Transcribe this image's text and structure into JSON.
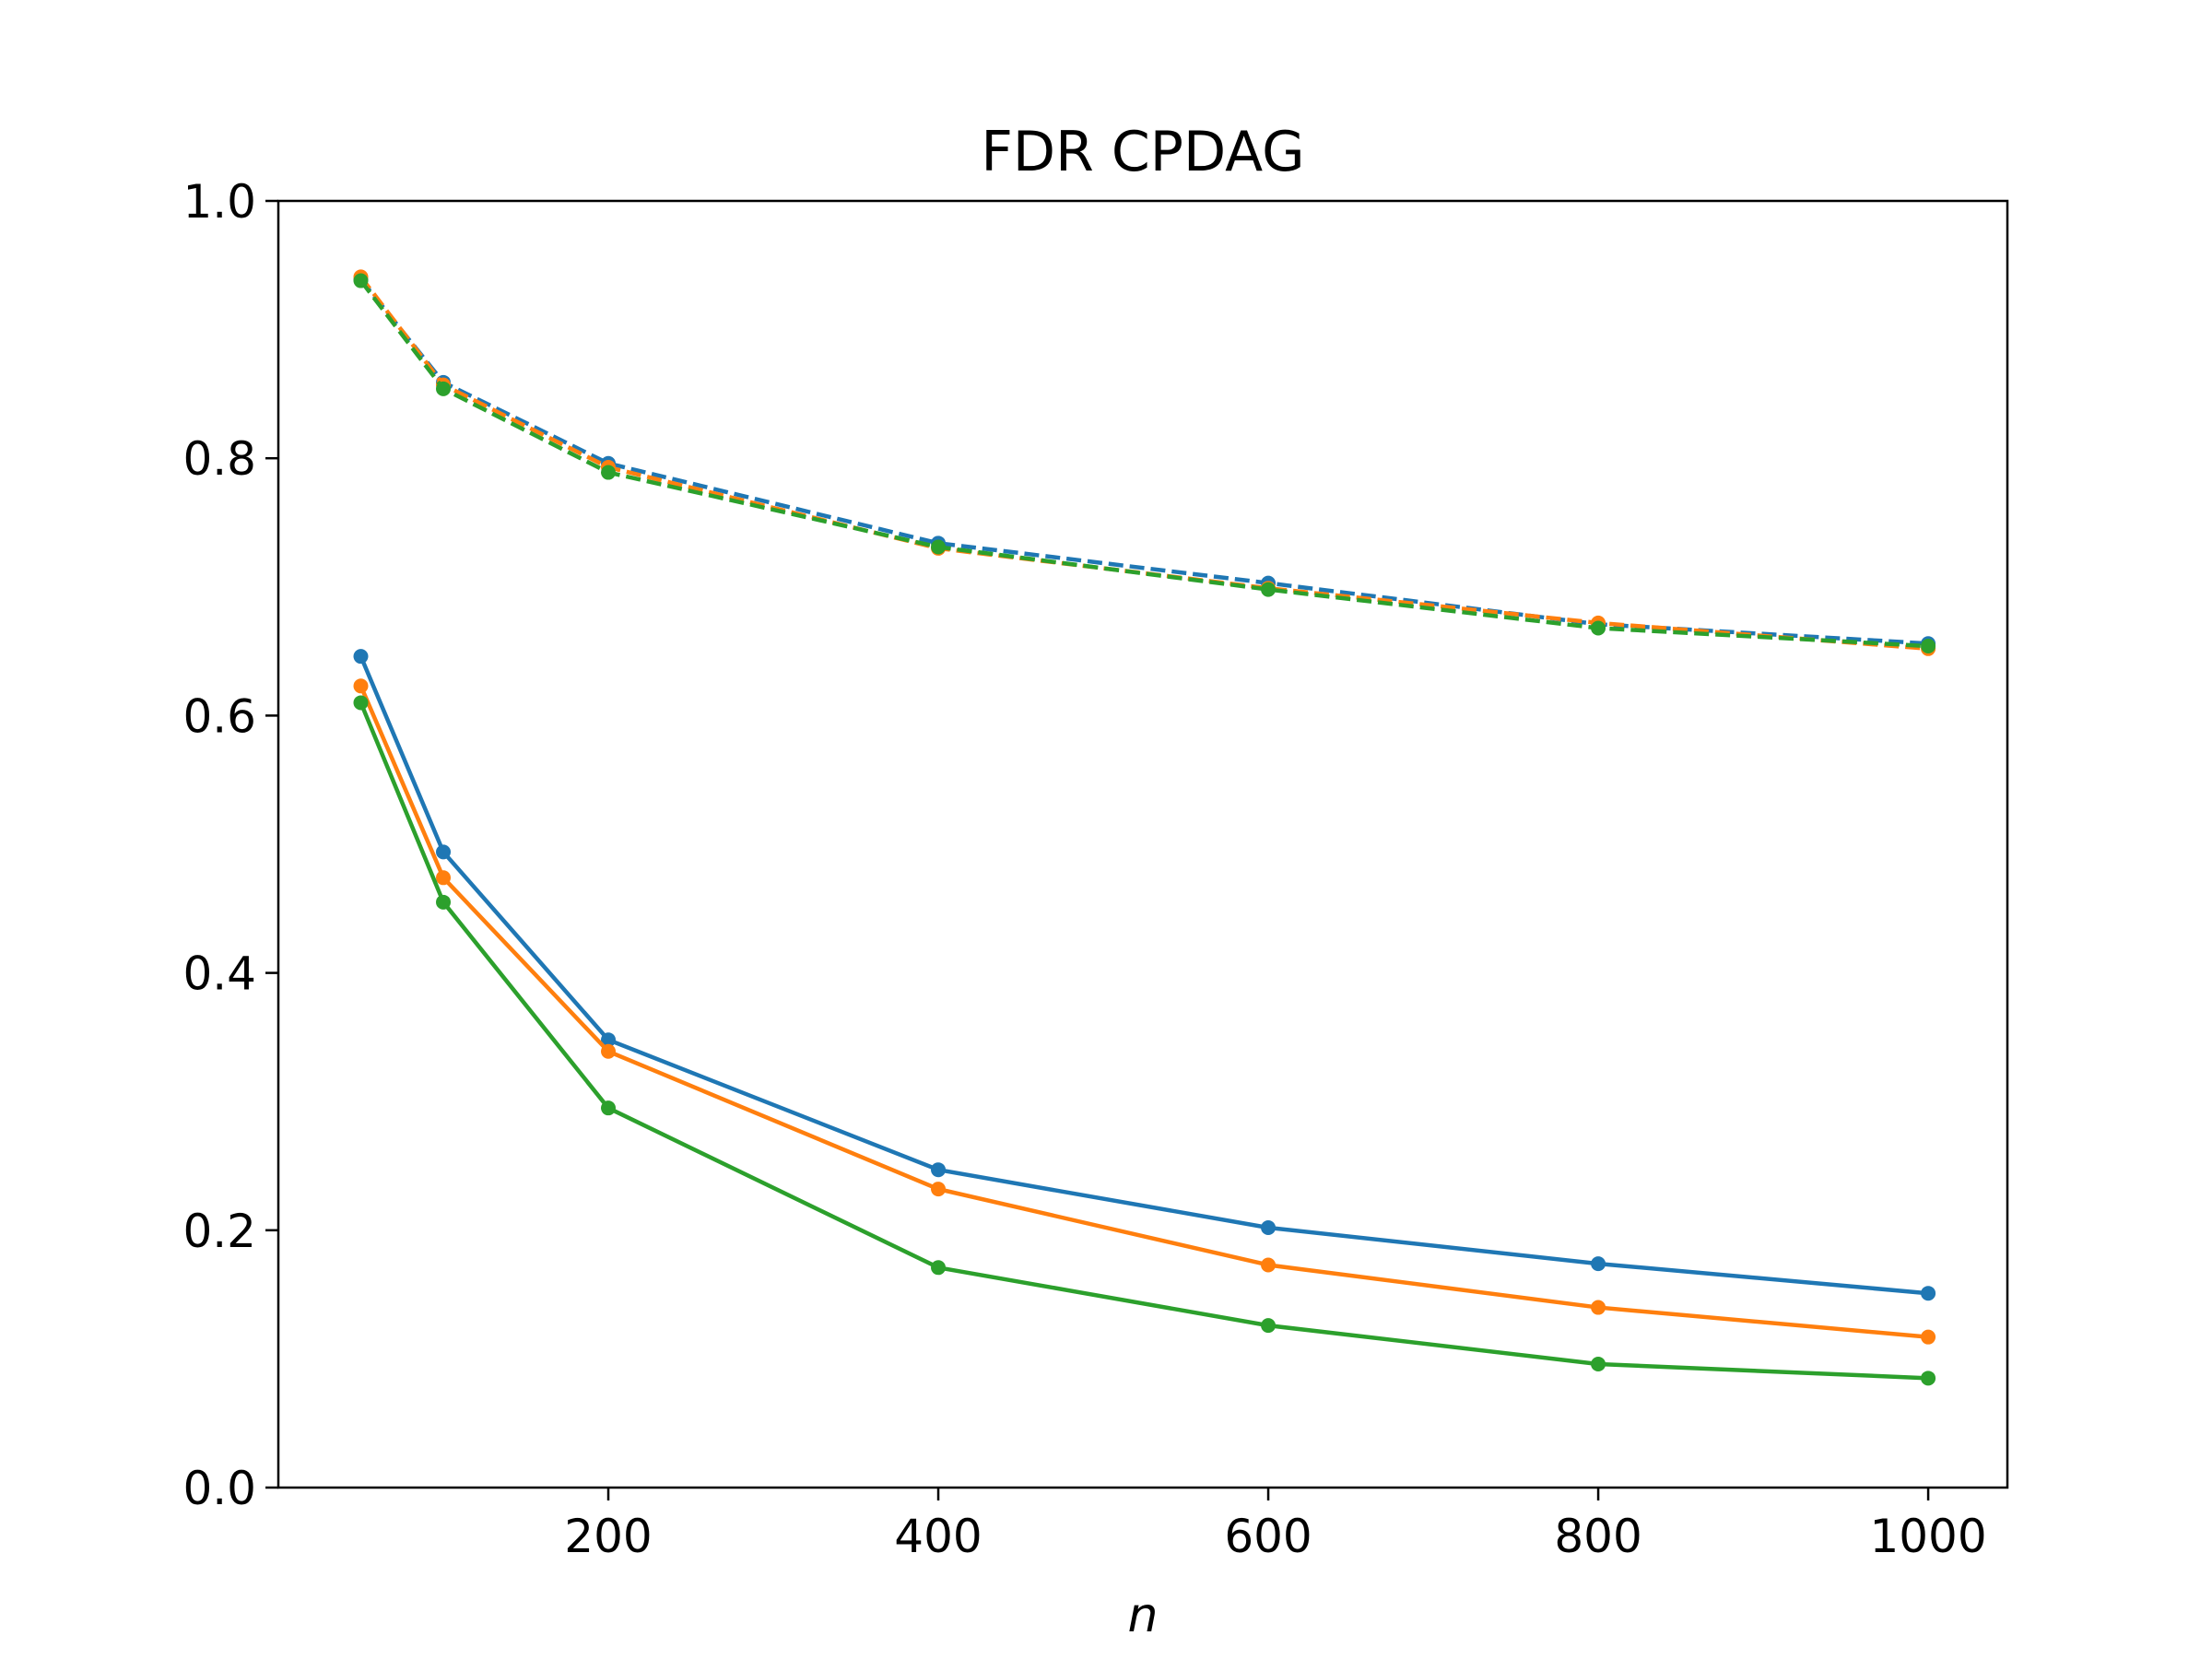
{
  "chart_data": {
    "type": "line",
    "title": "FDR CPDAG",
    "xlabel": "n",
    "ylabel": "",
    "xlim": [
      0,
      1048
    ],
    "ylim": [
      0.0,
      1.0
    ],
    "x_ticks": [
      200,
      400,
      600,
      800,
      1000
    ],
    "y_ticks": [
      0.0,
      0.2,
      0.4,
      0.6,
      0.8,
      1.0
    ],
    "x_tick_labels": [
      "200",
      "400",
      "600",
      "800",
      "1000"
    ],
    "y_tick_labels": [
      "0.0",
      "0.2",
      "0.4",
      "0.6",
      "0.8",
      "1.0"
    ],
    "grid": false,
    "x": [
      50,
      100,
      200,
      400,
      600,
      800,
      1000
    ],
    "series": [
      {
        "color": "#1f77b4",
        "style": "solid",
        "values": [
          0.646,
          0.494,
          0.348,
          0.247,
          0.202,
          0.174,
          0.151
        ]
      },
      {
        "color": "#ff7f0e",
        "style": "solid",
        "values": [
          0.623,
          0.474,
          0.339,
          0.232,
          0.173,
          0.14,
          0.117
        ]
      },
      {
        "color": "#2ca02c",
        "style": "solid",
        "values": [
          0.61,
          0.455,
          0.295,
          0.171,
          0.126,
          0.096,
          0.085
        ]
      },
      {
        "color": "#1f77b4",
        "style": "dashed",
        "values": [
          0.939,
          0.859,
          0.796,
          0.734,
          0.703,
          0.671,
          0.656
        ]
      },
      {
        "color": "#ff7f0e",
        "style": "dashed",
        "values": [
          0.941,
          0.857,
          0.793,
          0.73,
          0.699,
          0.672,
          0.652
        ]
      },
      {
        "color": "#2ca02c",
        "style": "dashed",
        "values": [
          0.938,
          0.854,
          0.789,
          0.731,
          0.698,
          0.668,
          0.654
        ]
      }
    ]
  }
}
